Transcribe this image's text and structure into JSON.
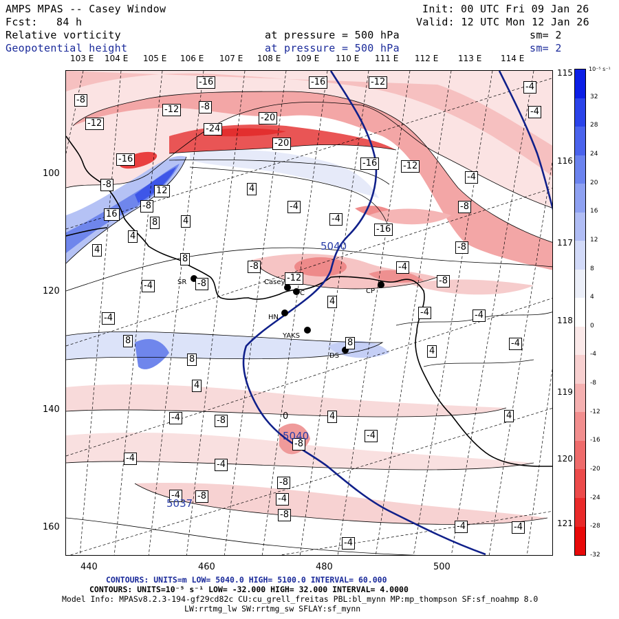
{
  "header": {
    "title": "AMPS MPAS -- Casey Window",
    "init": "Init: 00 UTC Fri 09 Jan 26",
    "fcst_label": "Fcst:",
    "fcst_value": "84 h",
    "valid": "Valid: 12 UTC Mon 12 Jan 26",
    "field1": "Relative vorticity",
    "field1_level": "at pressure =  500 hPa",
    "field1_sm": "sm= 2",
    "field2": "Geopotential height",
    "field2_level": "at pressure =  500 hPa",
    "field2_sm": "sm= 2"
  },
  "axes": {
    "x_ticks": [
      "440",
      "460",
      "480",
      "500"
    ],
    "y_ticks": [
      "100",
      "120",
      "140",
      "160"
    ],
    "lon_labels": [
      "103 E",
      "104 E",
      "105 E",
      "106 E",
      "107 E",
      "108 E",
      "109 E",
      "110 E",
      "111 E",
      "112 E",
      "113 E",
      "114 E"
    ],
    "lat_labels": [
      "115 E",
      "116 E",
      "117 E",
      "118 E",
      "119 E",
      "120 E",
      "121 E"
    ]
  },
  "colorbar": {
    "units": "10⁻⁵ s⁻¹",
    "labels": [
      "32",
      "28",
      "24",
      "20",
      "16",
      "12",
      "8",
      "4",
      "0",
      "-4",
      "-8",
      "-12",
      "-16",
      "-20",
      "-24",
      "-28",
      "-32"
    ],
    "colors": [
      "#0b1ee6",
      "#2a43ea",
      "#4a63ed",
      "#6b83ef",
      "#8ea1f2",
      "#b0bdf5",
      "#d2daf9",
      "#eceff9",
      "#ffffff",
      "#fbe9e9",
      "#f8d0d0",
      "#f5b0b0",
      "#f28e8e",
      "#ef6b6b",
      "#ec4a4a",
      "#e92929",
      "#e80909"
    ]
  },
  "stations": [
    {
      "name": "SR"
    },
    {
      "name": "Casey"
    },
    {
      "name": "C"
    },
    {
      "name": "HN"
    },
    {
      "name": "YAKS"
    },
    {
      "name": "DS"
    },
    {
      "name": "CP"
    }
  ],
  "contour_labels": {
    "vorticity": [
      "-16",
      "-16",
      "-12",
      "-8",
      "-12",
      "-8",
      "-12",
      "-24",
      "-20",
      "-20",
      "-16",
      "-16",
      "-12",
      "-4",
      "-4",
      "-8",
      "-4",
      "-8",
      "4",
      "12",
      "-4",
      "-8",
      "16",
      "8",
      "4",
      "-4",
      "4",
      "-16",
      "4",
      "-8",
      "8",
      "-8",
      "-12",
      "-4",
      "-8",
      "-8",
      "-4",
      "-4",
      "4",
      "-4",
      "-4",
      "8",
      "8",
      "-4",
      "4",
      "8",
      "4",
      "-4",
      "-8",
      "0",
      "4",
      "-8",
      "-4",
      "4",
      "-4",
      "-4",
      "-8",
      "-4",
      "-4",
      "-8",
      "-8",
      "-4",
      "-4",
      "-4"
    ],
    "height": [
      "5040",
      "5040",
      "5037"
    ]
  },
  "footer": {
    "line1": "CONTOURS:  UNITS=m  LOW=  5040.0      HIGH=  5100.0       INTERVAL=   60.000",
    "line2": "CONTOURS:  UNITS=10⁻⁵ s⁻¹  LOW= -32.000       HIGH=  32.000        INTERVAL=   4.0000",
    "line3": "Model Info: MPASv8.2.3-194-gf29cd82c CU:cu_grell_freitas PBL:bl_mynn MP:mp_thompson SF:sf_noahmp 8.0",
    "line4": "LW:rrtmg_lw SW:rrtmg_sw SFLAY:sf_mynn"
  }
}
